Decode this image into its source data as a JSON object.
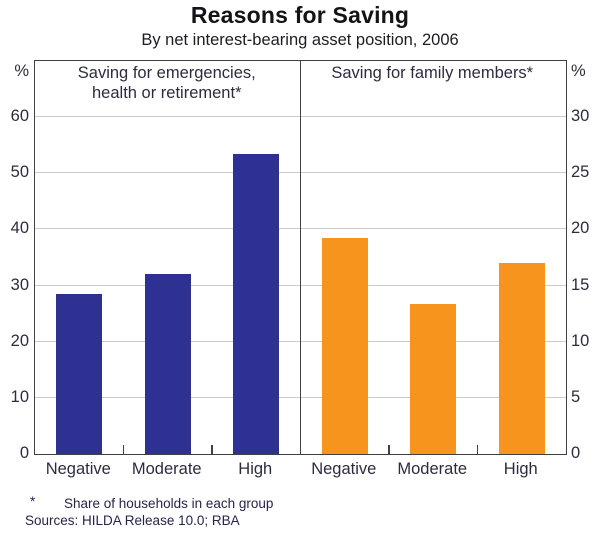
{
  "chart_data": {
    "type": "bar",
    "title": "Reasons for Saving",
    "subtitle": "By net interest-bearing asset position, 2006",
    "categories": [
      "Negative",
      "Moderate",
      "High"
    ],
    "panels": [
      {
        "id": "emergencies",
        "title_lines": [
          "Saving for emergencies,",
          "health or retirement*"
        ],
        "axis": "left",
        "color": "#2e3192",
        "values": [
          28.5,
          32,
          53.5
        ]
      },
      {
        "id": "family",
        "title_lines": [
          "Saving for family members*"
        ],
        "axis": "right",
        "color": "#f7941e",
        "values": [
          19.2,
          13.4,
          17
        ]
      }
    ],
    "left_axis": {
      "unit": "%",
      "ticks": [
        60,
        50,
        40,
        30,
        20,
        10,
        0
      ],
      "range": [
        0,
        70
      ]
    },
    "right_axis": {
      "unit": "%",
      "ticks": [
        30,
        25,
        20,
        15,
        10,
        5,
        0
      ],
      "range": [
        0,
        35
      ]
    },
    "grid": true,
    "legend_position": "none"
  },
  "footnotes": {
    "asterisk_symbol": "*",
    "asterisk_text": "Share of households in each group",
    "sources": "Sources: HILDA Release 10.0; RBA"
  },
  "colors": {
    "bar_blue": "#2e3192",
    "bar_orange": "#f7941e",
    "gridline": "#cccccc",
    "frame": "#3f3f44"
  }
}
